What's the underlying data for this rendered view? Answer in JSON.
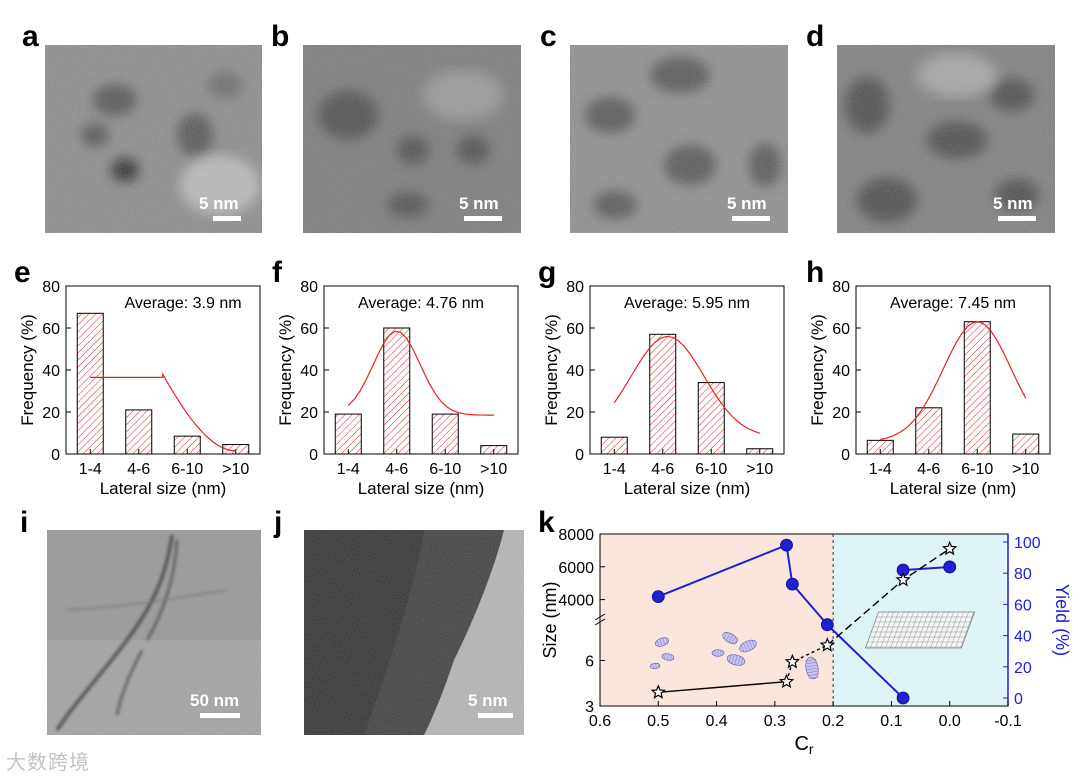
{
  "panels": {
    "a": "a",
    "b": "b",
    "c": "c",
    "d": "d",
    "e": "e",
    "f": "f",
    "g": "g",
    "h": "h",
    "i": "i",
    "j": "j",
    "k": "k"
  },
  "scalebars": {
    "a": "5 nm",
    "b": "5 nm",
    "c": "5 nm",
    "d": "5 nm",
    "i": "50 nm",
    "j": "5 nm"
  },
  "watermark": "大数跨境",
  "chart_data": [
    {
      "panel": "e",
      "type": "bar",
      "categories": [
        "1-4",
        "4-6",
        "6-10",
        ">10"
      ],
      "values": [
        67,
        21,
        8.5,
        4.5
      ],
      "annotation": "Average: 3.9 nm",
      "xlabel": "Lateral size (nm)",
      "ylabel": "Frequency (%)",
      "ylim": [
        0,
        80
      ],
      "yticks": [
        0,
        20,
        40,
        60,
        80
      ],
      "fit": {
        "type": "lognormal-like",
        "color": "#e8231f"
      }
    },
    {
      "panel": "f",
      "type": "bar",
      "categories": [
        "1-4",
        "4-6",
        "6-10",
        ">10"
      ],
      "values": [
        19,
        60,
        19,
        4
      ],
      "annotation": "Average: 4.76 nm",
      "xlabel": "Lateral size (nm)",
      "ylabel": "Frequency (%)",
      "ylim": [
        0,
        80
      ],
      "yticks": [
        0,
        20,
        40,
        60,
        80
      ],
      "fit": {
        "type": "gaussian",
        "color": "#e8231f"
      }
    },
    {
      "panel": "g",
      "type": "bar",
      "categories": [
        "1-4",
        "4-6",
        "6-10",
        ">10"
      ],
      "values": [
        8,
        57,
        34,
        2.5
      ],
      "annotation": "Average: 5.95 nm",
      "xlabel": "Lateral size (nm)",
      "ylabel": "Frequency (%)",
      "ylim": [
        0,
        80
      ],
      "yticks": [
        0,
        20,
        40,
        60,
        80
      ],
      "fit": {
        "type": "gaussian",
        "color": "#e8231f"
      }
    },
    {
      "panel": "h",
      "type": "bar",
      "categories": [
        "1-4",
        "4-6",
        "6-10",
        ">10"
      ],
      "values": [
        6.5,
        22,
        63,
        9.5
      ],
      "annotation": "Average: 7.45 nm",
      "xlabel": "Lateral size (nm)",
      "ylabel": "Frequency (%)",
      "ylim": [
        0,
        80
      ],
      "yticks": [
        0,
        20,
        40,
        60,
        80
      ],
      "fit": {
        "type": "gaussian",
        "color": "#e8231f"
      }
    },
    {
      "panel": "k",
      "type": "scatter",
      "xlabel": "Cr",
      "ylabel_left": "Size (nm)",
      "ylabel_right": "Yield (%)",
      "xlim": [
        0.6,
        -0.1
      ],
      "xticks": [
        "0.6",
        "0.5",
        "0.4",
        "0.3",
        "0.2",
        "0.1",
        "0.0",
        "-0.1"
      ],
      "ylim_left_upper": [
        3000,
        8000
      ],
      "yticks_left_upper": [
        "4000",
        "6000",
        "8000"
      ],
      "ylim_left_lower": [
        3,
        8
      ],
      "yticks_left_lower": [
        "3",
        "6"
      ],
      "ylim_right": [
        0,
        100
      ],
      "yticks_right": [
        "0",
        "20",
        "40",
        "60",
        "80",
        "100"
      ],
      "divider_x": 0.2,
      "series": [
        {
          "axis": "size",
          "color": "#000000",
          "points": [
            [
              0.5,
              3.9
            ],
            [
              0.28,
              4.6
            ],
            [
              0.27,
              5.9
            ],
            [
              0.21,
              7.0
            ],
            [
              0.08,
              5200
            ],
            [
              0.0,
              7100
            ]
          ]
        },
        {
          "axis": "yield",
          "color": "#1f1fd8",
          "points": [
            [
              0.5,
              65
            ],
            [
              0.28,
              98
            ],
            [
              0.27,
              73
            ],
            [
              0.21,
              47
            ],
            [
              0.08,
              0
            ],
            [
              0.08,
              82
            ],
            [
              0.0,
              84
            ]
          ]
        }
      ]
    }
  ]
}
